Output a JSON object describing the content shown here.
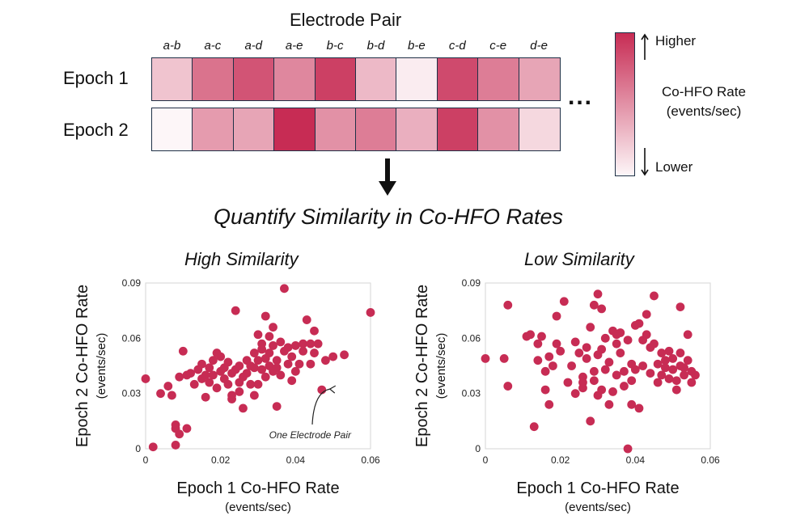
{
  "heatmap": {
    "title": "Electrode Pair",
    "pairs": [
      "a-b",
      "a-c",
      "a-d",
      "a-e",
      "b-c",
      "b-d",
      "b-e",
      "c-d",
      "c-e",
      "d-e"
    ],
    "epochs": [
      {
        "label": "Epoch 1",
        "intensity": [
          0.25,
          0.65,
          0.8,
          0.55,
          0.9,
          0.3,
          0.05,
          0.85,
          0.6,
          0.4
        ]
      },
      {
        "label": "Epoch 2",
        "intensity": [
          0.0,
          0.45,
          0.4,
          1.0,
          0.5,
          0.6,
          0.35,
          0.9,
          0.5,
          0.15
        ]
      }
    ],
    "ellipsis": "...",
    "high_color": "#c72c54",
    "low_color": "#fdf6f8",
    "border_color": "#1f3147"
  },
  "colorbar": {
    "higher": "Higher",
    "lower": "Lower",
    "label_line1": "Co-HFO Rate",
    "label_line2": "(events/sec)"
  },
  "flow": {
    "subtitle": "Quantify Similarity in Co-HFO Rates"
  },
  "chart_data": [
    {
      "type": "scatter",
      "title": "High Similarity",
      "xlabel": "Epoch 1 Co-HFO Rate",
      "xlabel_units": "(events/sec)",
      "ylabel": "Epoch 2 Co-HFO Rate",
      "ylabel_units": "(events/sec)",
      "xlim": [
        0,
        0.06
      ],
      "ylim": [
        0,
        0.09
      ],
      "xticks": [
        "0",
        "0.02",
        "0.04",
        "0.06"
      ],
      "yticks": [
        "0",
        "0.03",
        "0.06",
        "0.09"
      ],
      "annotation": "One Electrode Pair",
      "color": "#c72c54",
      "points": [
        [
          0.0,
          0.038
        ],
        [
          0.002,
          0.001
        ],
        [
          0.004,
          0.03
        ],
        [
          0.006,
          0.034
        ],
        [
          0.007,
          0.029
        ],
        [
          0.008,
          0.002
        ],
        [
          0.008,
          0.011
        ],
        [
          0.008,
          0.013
        ],
        [
          0.009,
          0.008
        ],
        [
          0.009,
          0.039
        ],
        [
          0.01,
          0.053
        ],
        [
          0.011,
          0.04
        ],
        [
          0.011,
          0.011
        ],
        [
          0.012,
          0.041
        ],
        [
          0.013,
          0.035
        ],
        [
          0.014,
          0.043
        ],
        [
          0.015,
          0.038
        ],
        [
          0.015,
          0.046
        ],
        [
          0.016,
          0.04
        ],
        [
          0.016,
          0.028
        ],
        [
          0.017,
          0.044
        ],
        [
          0.017,
          0.036
        ],
        [
          0.018,
          0.048
        ],
        [
          0.018,
          0.04
        ],
        [
          0.019,
          0.052
        ],
        [
          0.019,
          0.033
        ],
        [
          0.02,
          0.042
        ],
        [
          0.02,
          0.05
        ],
        [
          0.021,
          0.038
        ],
        [
          0.021,
          0.044
        ],
        [
          0.022,
          0.035
        ],
        [
          0.022,
          0.047
        ],
        [
          0.023,
          0.041
        ],
        [
          0.023,
          0.029
        ],
        [
          0.024,
          0.075
        ],
        [
          0.024,
          0.043
        ],
        [
          0.025,
          0.036
        ],
        [
          0.025,
          0.031
        ],
        [
          0.025,
          0.045
        ],
        [
          0.026,
          0.039
        ],
        [
          0.026,
          0.022
        ],
        [
          0.027,
          0.048
        ],
        [
          0.027,
          0.041
        ],
        [
          0.028,
          0.045
        ],
        [
          0.028,
          0.035
        ],
        [
          0.029,
          0.052
        ],
        [
          0.029,
          0.029
        ],
        [
          0.029,
          0.044
        ],
        [
          0.03,
          0.062
        ],
        [
          0.03,
          0.048
        ],
        [
          0.03,
          0.035
        ],
        [
          0.031,
          0.057
        ],
        [
          0.031,
          0.043
        ],
        [
          0.031,
          0.054
        ],
        [
          0.032,
          0.072
        ],
        [
          0.032,
          0.049
        ],
        [
          0.032,
          0.039
        ],
        [
          0.033,
          0.061
        ],
        [
          0.033,
          0.045
        ],
        [
          0.033,
          0.052
        ],
        [
          0.034,
          0.056
        ],
        [
          0.034,
          0.042
        ],
        [
          0.034,
          0.066
        ],
        [
          0.035,
          0.044
        ],
        [
          0.035,
          0.048
        ],
        [
          0.035,
          0.023
        ],
        [
          0.036,
          0.058
        ],
        [
          0.036,
          0.04
        ],
        [
          0.037,
          0.087
        ],
        [
          0.037,
          0.053
        ],
        [
          0.038,
          0.046
        ],
        [
          0.038,
          0.055
        ],
        [
          0.039,
          0.037
        ],
        [
          0.039,
          0.05
        ],
        [
          0.04,
          0.056
        ],
        [
          0.04,
          0.042
        ],
        [
          0.041,
          0.046
        ],
        [
          0.042,
          0.057
        ],
        [
          0.042,
          0.053
        ],
        [
          0.043,
          0.07
        ],
        [
          0.044,
          0.057
        ],
        [
          0.044,
          0.046
        ],
        [
          0.045,
          0.052
        ],
        [
          0.045,
          0.064
        ],
        [
          0.046,
          0.057
        ],
        [
          0.047,
          0.032
        ],
        [
          0.048,
          0.048
        ],
        [
          0.05,
          0.05
        ],
        [
          0.053,
          0.051
        ],
        [
          0.06,
          0.074
        ],
        [
          0.023,
          0.027
        ]
      ]
    },
    {
      "type": "scatter",
      "title": "Low Similarity",
      "xlabel": "Epoch 1 Co-HFO Rate",
      "xlabel_units": "(events/sec)",
      "ylabel": "Epoch 2 Co-HFO Rate",
      "ylabel_units": "(events/sec)",
      "xlim": [
        0,
        0.06
      ],
      "ylim": [
        0,
        0.09
      ],
      "xticks": [
        "0",
        "0.02",
        "0.04",
        "0.06"
      ],
      "yticks": [
        "0",
        "0.03",
        "0.06",
        "0.09"
      ],
      "color": "#c72c54",
      "points": [
        [
          0.0,
          0.049
        ],
        [
          0.005,
          0.049
        ],
        [
          0.006,
          0.078
        ],
        [
          0.006,
          0.034
        ],
        [
          0.011,
          0.061
        ],
        [
          0.012,
          0.062
        ],
        [
          0.013,
          0.012
        ],
        [
          0.014,
          0.057
        ],
        [
          0.014,
          0.048
        ],
        [
          0.015,
          0.061
        ],
        [
          0.016,
          0.042
        ],
        [
          0.016,
          0.032
        ],
        [
          0.017,
          0.05
        ],
        [
          0.017,
          0.024
        ],
        [
          0.018,
          0.045
        ],
        [
          0.019,
          0.072
        ],
        [
          0.019,
          0.057
        ],
        [
          0.02,
          0.053
        ],
        [
          0.021,
          0.08
        ],
        [
          0.022,
          0.036
        ],
        [
          0.023,
          0.045
        ],
        [
          0.024,
          0.058
        ],
        [
          0.024,
          0.03
        ],
        [
          0.025,
          0.052
        ],
        [
          0.026,
          0.039
        ],
        [
          0.026,
          0.036
        ],
        [
          0.026,
          0.033
        ],
        [
          0.027,
          0.049
        ],
        [
          0.027,
          0.055
        ],
        [
          0.028,
          0.066
        ],
        [
          0.028,
          0.015
        ],
        [
          0.029,
          0.078
        ],
        [
          0.029,
          0.042
        ],
        [
          0.029,
          0.037
        ],
        [
          0.03,
          0.084
        ],
        [
          0.03,
          0.029
        ],
        [
          0.03,
          0.051
        ],
        [
          0.031,
          0.076
        ],
        [
          0.031,
          0.054
        ],
        [
          0.031,
          0.032
        ],
        [
          0.032,
          0.06
        ],
        [
          0.032,
          0.043
        ],
        [
          0.033,
          0.047
        ],
        [
          0.033,
          0.024
        ],
        [
          0.034,
          0.064
        ],
        [
          0.034,
          0.031
        ],
        [
          0.035,
          0.057
        ],
        [
          0.035,
          0.062
        ],
        [
          0.035,
          0.04
        ],
        [
          0.036,
          0.063
        ],
        [
          0.036,
          0.052
        ],
        [
          0.037,
          0.034
        ],
        [
          0.037,
          0.042
        ],
        [
          0.038,
          0.0
        ],
        [
          0.038,
          0.059
        ],
        [
          0.039,
          0.046
        ],
        [
          0.039,
          0.037
        ],
        [
          0.039,
          0.024
        ],
        [
          0.04,
          0.067
        ],
        [
          0.04,
          0.043
        ],
        [
          0.041,
          0.068
        ],
        [
          0.041,
          0.022
        ],
        [
          0.042,
          0.045
        ],
        [
          0.042,
          0.059
        ],
        [
          0.043,
          0.073
        ],
        [
          0.043,
          0.062
        ],
        [
          0.044,
          0.041
        ],
        [
          0.044,
          0.055
        ],
        [
          0.045,
          0.083
        ],
        [
          0.045,
          0.057
        ],
        [
          0.046,
          0.036
        ],
        [
          0.046,
          0.046
        ],
        [
          0.047,
          0.04
        ],
        [
          0.048,
          0.044
        ],
        [
          0.048,
          0.048
        ],
        [
          0.049,
          0.038
        ],
        [
          0.05,
          0.043
        ],
        [
          0.05,
          0.049
        ],
        [
          0.051,
          0.032
        ],
        [
          0.051,
          0.037
        ],
        [
          0.052,
          0.045
        ],
        [
          0.052,
          0.052
        ],
        [
          0.052,
          0.077
        ],
        [
          0.053,
          0.044
        ],
        [
          0.053,
          0.04
        ],
        [
          0.054,
          0.048
        ],
        [
          0.054,
          0.062
        ],
        [
          0.055,
          0.036
        ],
        [
          0.055,
          0.042
        ],
        [
          0.056,
          0.04
        ],
        [
          0.049,
          0.053
        ],
        [
          0.047,
          0.052
        ]
      ]
    }
  ]
}
